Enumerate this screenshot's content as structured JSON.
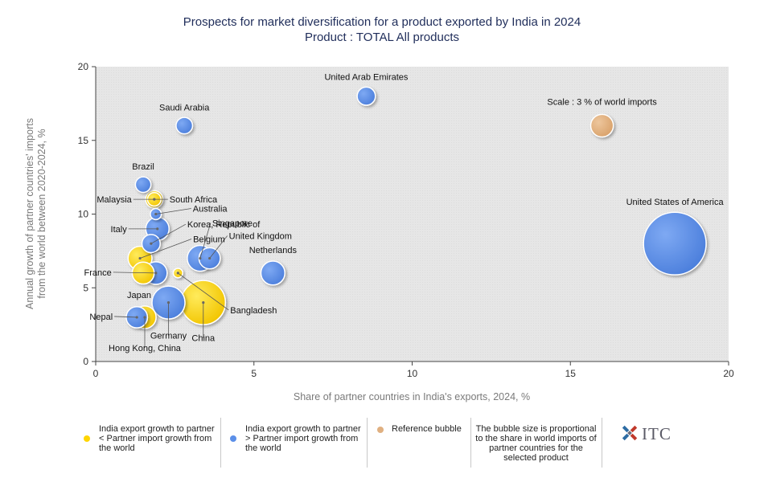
{
  "chart_data": {
    "type": "scatter",
    "title": "Prospects for market diversification for a product exported by India in 2024",
    "subtitle": "Product : TOTAL All products",
    "xlabel": "Share of partner countries in India's exports, 2024, %",
    "ylabel": "Annual growth of partner countries' imports\nfrom the world between 2020-2024, %",
    "xlim": [
      0,
      20
    ],
    "ylim": [
      0,
      20
    ],
    "xticks": [
      0,
      5,
      10,
      15,
      20
    ],
    "yticks": [
      0,
      5,
      10,
      15,
      20
    ],
    "grid": "off",
    "colors": {
      "lower": "#ffd500",
      "higher": "#5b8fe8",
      "reference": "#e0b081",
      "plot_bg": "#e6e6e6"
    },
    "points": [
      {
        "label": "United States of America",
        "x": 18.3,
        "y": 8.0,
        "size": 13.0,
        "group": "higher"
      },
      {
        "label": "China",
        "x": 3.4,
        "y": 4.0,
        "size": 6.5,
        "group": "lower"
      },
      {
        "label": "Germany",
        "x": 2.3,
        "y": 4.0,
        "size": 3.6,
        "group": "higher"
      },
      {
        "label": "Netherlands",
        "x": 5.6,
        "y": 6.0,
        "size": 1.9,
        "group": "higher"
      },
      {
        "label": "United Arab Emirates",
        "x": 8.55,
        "y": 18.0,
        "size": 1.1,
        "group": "higher"
      },
      {
        "label": "Saudi Arabia",
        "x": 2.8,
        "y": 16.0,
        "size": 0.9,
        "group": "higher"
      },
      {
        "label": "Brazil",
        "x": 1.5,
        "y": 12.0,
        "size": 0.8,
        "group": "higher"
      },
      {
        "label": "Malaysia",
        "x": 1.85,
        "y": 11.0,
        "size": 1.0,
        "group": "lower"
      },
      {
        "label": "South Africa",
        "x": 1.85,
        "y": 11.0,
        "size": 0.6,
        "group": "lower"
      },
      {
        "label": "Australia",
        "x": 1.9,
        "y": 10.0,
        "size": 0.4,
        "group": "higher"
      },
      {
        "label": "Italy",
        "x": 1.95,
        "y": 9.0,
        "size": 1.8,
        "group": "higher"
      },
      {
        "label": "Korea, Republic of",
        "x": 1.75,
        "y": 8.0,
        "size": 1.1,
        "group": "higher"
      },
      {
        "label": "Belgium",
        "x": 1.4,
        "y": 7.0,
        "size": 1.9,
        "group": "lower"
      },
      {
        "label": "Singapore",
        "x": 3.3,
        "y": 7.0,
        "size": 2.2,
        "group": "higher"
      },
      {
        "label": "United Kingdom",
        "x": 3.6,
        "y": 7.0,
        "size": 1.5,
        "group": "higher"
      },
      {
        "label": "France",
        "x": 1.9,
        "y": 6.0,
        "size": 1.7,
        "group": "higher"
      },
      {
        "label": "Japan",
        "x": 1.5,
        "y": 6.0,
        "size": 1.6,
        "group": "lower"
      },
      {
        "label": "Bangladesh",
        "x": 2.6,
        "y": 6.0,
        "size": 0.3,
        "group": "lower"
      },
      {
        "label": "Nepal",
        "x": 1.3,
        "y": 3.0,
        "size": 1.5,
        "group": "higher"
      },
      {
        "label": "Hong Kong, China",
        "x": 1.55,
        "y": 3.0,
        "size": 1.7,
        "group": "lower"
      },
      {
        "label": "Scale : 3 % of world imports",
        "x": 16.0,
        "y": 16.0,
        "size": 1.7,
        "group": "reference"
      }
    ]
  },
  "legend": {
    "lower_label": "India export growth to partner < Partner import growth from the world",
    "higher_label": "India export growth to partner > Partner import growth from the world",
    "reference_label": "Reference bubble",
    "size_note": "The bubble size is proportional to the share in world imports of partner countries for the selected product"
  },
  "logo": {
    "text": "ITC"
  }
}
